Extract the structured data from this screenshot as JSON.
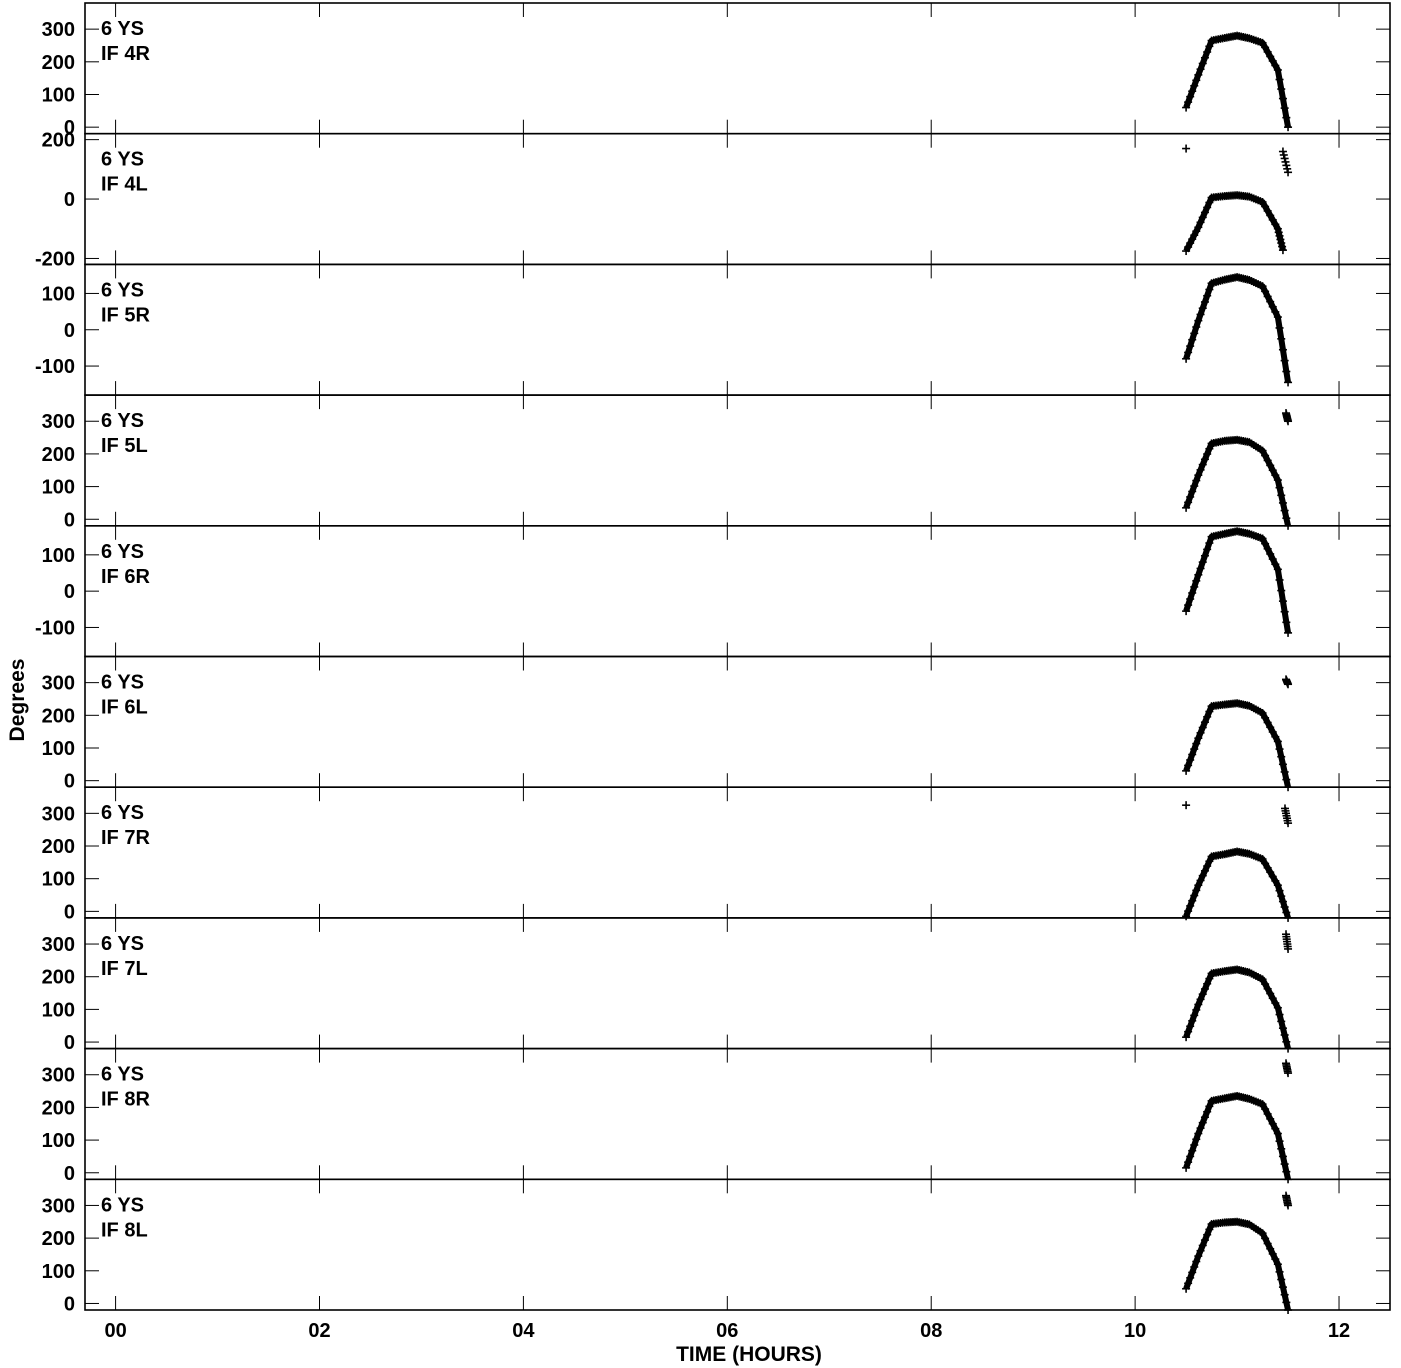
{
  "chart_data": {
    "type": "scatter",
    "xlabel": "TIME (HOURS)",
    "ylabel": "Degrees",
    "xlim": [
      -0.3,
      12.5
    ],
    "x_ticks": [
      0,
      2,
      4,
      6,
      8,
      10,
      12
    ],
    "x_tick_labels": [
      "00",
      "02",
      "04",
      "06",
      "08",
      "10",
      "12"
    ],
    "marker": "+",
    "color": "#000000",
    "panels": [
      {
        "station": "6 YS",
        "label": "IF 4R",
        "ylim": [
          -20,
          380
        ],
        "ticks": [
          0,
          100,
          200,
          300
        ],
        "tick_labels": [
          "0",
          "100",
          "200",
          "300"
        ],
        "x": [
          10.5,
          10.62,
          10.75,
          10.88,
          11.0,
          11.12,
          11.25,
          11.4,
          11.5
        ],
        "y": [
          60,
          160,
          265,
          273,
          280,
          272,
          258,
          175,
          0
        ],
        "outliers": []
      },
      {
        "station": "6 YS",
        "label": "IF 4L",
        "ylim": [
          -220,
          220
        ],
        "ticks": [
          -200,
          0,
          200
        ],
        "tick_labels": [
          "-200",
          "0",
          "200"
        ],
        "x": [
          10.5,
          10.62,
          10.75,
          10.88,
          11.0,
          11.12,
          11.25,
          11.4,
          11.45
        ],
        "y": [
          -175,
          -95,
          5,
          10,
          13,
          8,
          -10,
          -100,
          -172
        ],
        "outliers": [
          {
            "x": [
              10.5
            ],
            "y": [
              170
            ]
          },
          {
            "x": [
              11.45,
              11.5
            ],
            "y": [
              160,
              90
            ]
          }
        ]
      },
      {
        "station": "6 YS",
        "label": "IF 5R",
        "ylim": [
          -180,
          180
        ],
        "ticks": [
          -100,
          0,
          100
        ],
        "tick_labels": [
          "-100",
          "0",
          "100"
        ],
        "x": [
          10.5,
          10.62,
          10.75,
          10.88,
          11.0,
          11.12,
          11.25,
          11.4,
          11.5
        ],
        "y": [
          -80,
          25,
          128,
          138,
          145,
          137,
          120,
          35,
          -145
        ],
        "outliers": []
      },
      {
        "station": "6 YS",
        "label": "IF 5L",
        "ylim": [
          -20,
          380
        ],
        "ticks": [
          0,
          100,
          200,
          300
        ],
        "tick_labels": [
          "0",
          "100",
          "200",
          "300"
        ],
        "x": [
          10.5,
          10.62,
          10.75,
          10.88,
          11.0,
          11.12,
          11.25,
          11.4,
          11.5
        ],
        "y": [
          35,
          135,
          232,
          240,
          243,
          236,
          210,
          120,
          -20
        ],
        "outliers": [
          {
            "x": [
              11.48,
              11.5
            ],
            "y": [
              325,
              300
            ]
          }
        ]
      },
      {
        "station": "6 YS",
        "label": "IF 6R",
        "ylim": [
          -180,
          180
        ],
        "ticks": [
          -100,
          0,
          100
        ],
        "tick_labels": [
          "-100",
          "0",
          "100"
        ],
        "x": [
          10.5,
          10.62,
          10.75,
          10.88,
          11.0,
          11.12,
          11.25,
          11.4,
          11.5
        ],
        "y": [
          -55,
          45,
          150,
          158,
          165,
          158,
          145,
          60,
          -115
        ],
        "outliers": []
      },
      {
        "station": "6 YS",
        "label": "IF 6L",
        "ylim": [
          -20,
          380
        ],
        "ticks": [
          0,
          100,
          200,
          300
        ],
        "tick_labels": [
          "0",
          "100",
          "200",
          "300"
        ],
        "x": [
          10.5,
          10.62,
          10.75,
          10.88,
          11.0,
          11.12,
          11.25,
          11.4,
          11.5
        ],
        "y": [
          30,
          130,
          228,
          233,
          237,
          229,
          207,
          120,
          -20
        ],
        "outliers": [
          {
            "x": [
              11.48,
              11.5
            ],
            "y": [
              310,
              295
            ]
          }
        ]
      },
      {
        "station": "6 YS",
        "label": "IF 7R",
        "ylim": [
          -20,
          380
        ],
        "ticks": [
          0,
          100,
          200,
          300
        ],
        "tick_labels": [
          "0",
          "100",
          "200",
          "300"
        ],
        "x": [
          10.5,
          10.62,
          10.75,
          10.88,
          11.0,
          11.12,
          11.25,
          11.4,
          11.5
        ],
        "y": [
          -15,
          80,
          168,
          175,
          183,
          176,
          160,
          80,
          -20
        ],
        "outliers": [
          {
            "x": [
              10.5
            ],
            "y": [
              325
            ]
          },
          {
            "x": [
              11.47,
              11.5
            ],
            "y": [
              315,
              270
            ]
          }
        ]
      },
      {
        "station": "6 YS",
        "label": "IF 7L",
        "ylim": [
          -20,
          380
        ],
        "ticks": [
          0,
          100,
          200,
          300
        ],
        "tick_labels": [
          "0",
          "100",
          "200",
          "300"
        ],
        "x": [
          10.5,
          10.62,
          10.75,
          10.88,
          11.0,
          11.12,
          11.25,
          11.4,
          11.5
        ],
        "y": [
          15,
          115,
          210,
          217,
          222,
          213,
          192,
          105,
          -20
        ],
        "outliers": [
          {
            "x": [
              11.48,
              11.5
            ],
            "y": [
              330,
              285
            ]
          }
        ]
      },
      {
        "station": "6 YS",
        "label": "IF 8R",
        "ylim": [
          -20,
          380
        ],
        "ticks": [
          0,
          100,
          200,
          300
        ],
        "tick_labels": [
          "0",
          "100",
          "200",
          "300"
        ],
        "x": [
          10.5,
          10.62,
          10.75,
          10.88,
          11.0,
          11.12,
          11.25,
          11.4,
          11.5
        ],
        "y": [
          15,
          120,
          220,
          228,
          235,
          226,
          210,
          120,
          -20
        ],
        "outliers": [
          {
            "x": [
              11.48,
              11.5
            ],
            "y": [
              335,
              305
            ]
          }
        ]
      },
      {
        "station": "6 YS",
        "label": "IF 8L",
        "ylim": [
          -20,
          380
        ],
        "ticks": [
          0,
          100,
          200,
          300
        ],
        "tick_labels": [
          "0",
          "100",
          "200",
          "300"
        ],
        "x": [
          10.5,
          10.62,
          10.75,
          10.88,
          11.0,
          11.12,
          11.25,
          11.4,
          11.5
        ],
        "y": [
          45,
          145,
          243,
          248,
          250,
          242,
          215,
          120,
          -20
        ],
        "outliers": [
          {
            "x": [
              11.48,
              11.5
            ],
            "y": [
              330,
              300
            ]
          }
        ]
      }
    ]
  }
}
